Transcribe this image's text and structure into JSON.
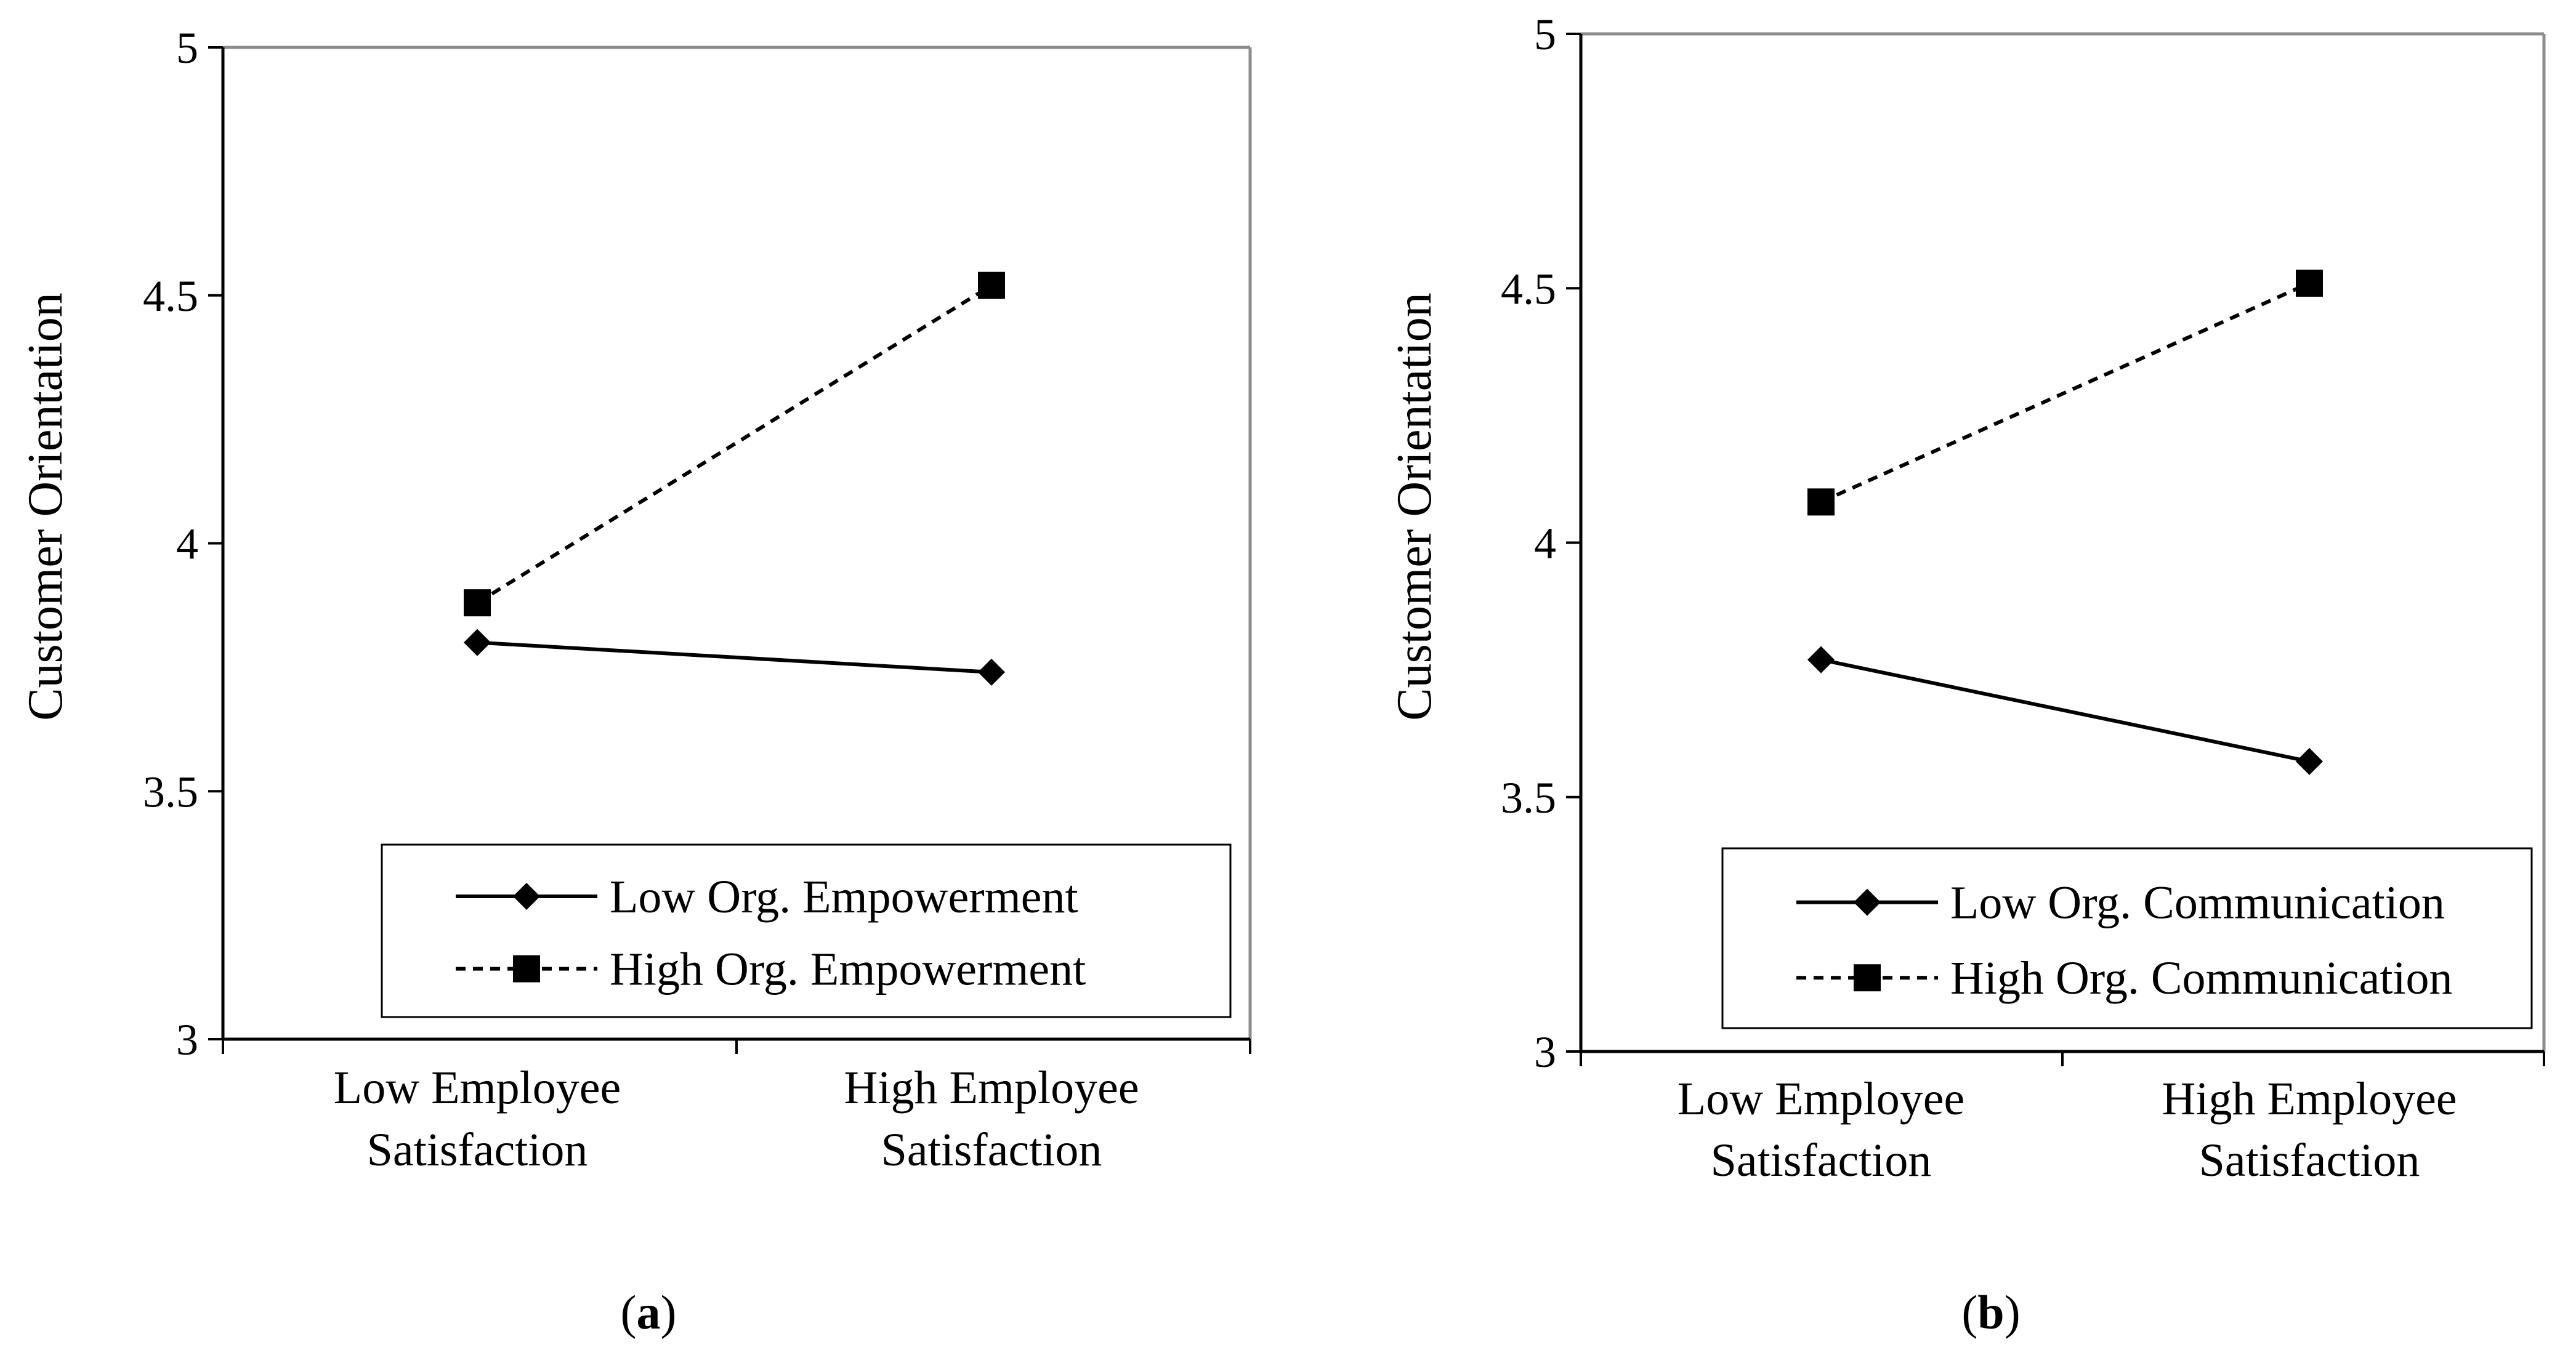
{
  "chart_data": [
    {
      "type": "line",
      "panel_label_prefix": "(",
      "panel_label_letter": "a",
      "panel_label_suffix": ")",
      "ylabel": "Customer Orientation",
      "ylim": [
        3,
        5
      ],
      "yticks": [
        3,
        3.5,
        4,
        4.5,
        5
      ],
      "ytick_labels": [
        "3",
        "3.5",
        "4",
        "4.5",
        "5"
      ],
      "categories": [
        [
          "Low Employee",
          "Satisfaction"
        ],
        [
          "High Employee",
          "Satisfaction"
        ]
      ],
      "legend_position": "bottom-right",
      "series": [
        {
          "name": "Low Org. Empowerment",
          "values": [
            3.8,
            3.74
          ],
          "line_style": "solid",
          "marker": "diamond"
        },
        {
          "name": "High Org. Empowerment",
          "values": [
            3.88,
            4.52
          ],
          "line_style": "dashed",
          "marker": "square"
        }
      ]
    },
    {
      "type": "line",
      "panel_label_prefix": "(",
      "panel_label_letter": "b",
      "panel_label_suffix": ")",
      "ylabel": "Customer Orientation",
      "ylim": [
        3,
        5
      ],
      "yticks": [
        3,
        3.5,
        4,
        4.5,
        5
      ],
      "ytick_labels": [
        "3",
        "3.5",
        "4",
        "4.5",
        "5"
      ],
      "categories": [
        [
          "Low Employee",
          "Satisfaction"
        ],
        [
          "High Employee",
          "Satisfaction"
        ]
      ],
      "legend_position": "bottom-right",
      "series": [
        {
          "name": "Low Org. Communication",
          "values": [
            3.77,
            3.57
          ],
          "line_style": "solid",
          "marker": "diamond"
        },
        {
          "name": "High Org. Communication",
          "values": [
            4.08,
            4.51
          ],
          "line_style": "dashed",
          "marker": "square"
        }
      ]
    }
  ]
}
